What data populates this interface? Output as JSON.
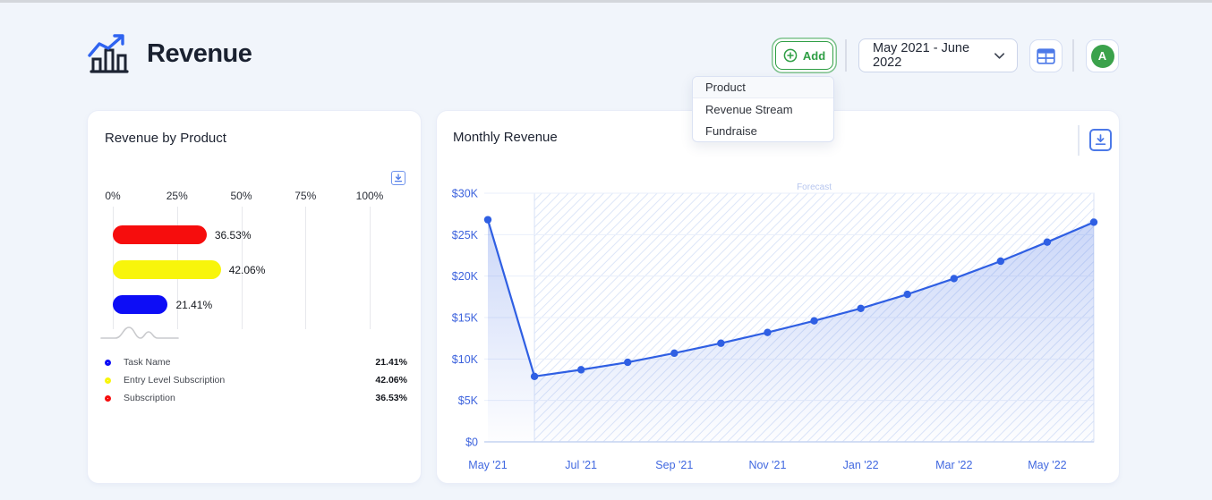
{
  "header": {
    "title": "Revenue",
    "add_button_label": "Add",
    "date_range_value": "May 2021 - June 2022",
    "avatar_initial": "A"
  },
  "add_menu": {
    "items": [
      {
        "label": "Product"
      },
      {
        "label": "Revenue Stream"
      },
      {
        "label": "Fundraise"
      }
    ]
  },
  "cards": {
    "revenue_by_product_title": "Revenue by Product",
    "monthly_revenue_title": "Monthly Revenue"
  },
  "colors": {
    "accent_blue": "#2f5fe3",
    "accent_green": "#2e9e44",
    "axis_label_blue": "#4168e0",
    "hatch_blue": "#dde6f8"
  },
  "chart_data": [
    {
      "type": "bar",
      "title": "Revenue by Product",
      "orientation": "horizontal",
      "categories": [
        "Subscription",
        "Entry Level Subscription",
        "Task Name"
      ],
      "values": [
        36.53,
        42.06,
        21.41
      ],
      "value_labels": [
        "36.53%",
        "42.06%",
        "21.41%"
      ],
      "colors": [
        "#f60d0d",
        "#f8f50b",
        "#0d0df6"
      ],
      "xticks": [
        "0%",
        "25%",
        "50%",
        "75%",
        "100%"
      ],
      "xlim": [
        0,
        100
      ],
      "grid": true,
      "legend_position": "bottom",
      "legend": [
        {
          "name": "Task Name",
          "value_label": "21.41%",
          "color": "#0d0df6"
        },
        {
          "name": "Entry Level Subscription",
          "value_label": "42.06%",
          "color": "#f8f50b"
        },
        {
          "name": "Subscription",
          "value_label": "36.53%",
          "color": "#f60d0d"
        }
      ]
    },
    {
      "type": "line",
      "title": "Monthly Revenue",
      "x": [
        "May '21",
        "Jun '21",
        "Jul '21",
        "Aug '21",
        "Sep '21",
        "Oct '21",
        "Nov '21",
        "Dec '21",
        "Jan '22",
        "Feb '22",
        "Mar '22",
        "Apr '22",
        "May '22",
        "Jun '22"
      ],
      "values_k": [
        26.8,
        7.9,
        8.7,
        9.6,
        10.7,
        11.9,
        13.2,
        14.6,
        16.1,
        17.8,
        19.7,
        21.8,
        24.1,
        26.5
      ],
      "ylim": [
        0,
        30
      ],
      "ylabel_unit": "$K",
      "yticks": [
        {
          "label": "$30K",
          "value": 30
        },
        {
          "label": "$25K",
          "value": 25
        },
        {
          "label": "$20K",
          "value": 20
        },
        {
          "label": "$15K",
          "value": 15
        },
        {
          "label": "$10K",
          "value": 10
        },
        {
          "label": "$5K",
          "value": 5
        },
        {
          "label": "$0",
          "value": 0
        }
      ],
      "xtick_indices": [
        0,
        2,
        4,
        6,
        8,
        10,
        12
      ],
      "xtick_labels": [
        "May '21",
        "Jul '21",
        "Sep '21",
        "Nov '21",
        "Jan '22",
        "Mar '22",
        "May '22"
      ],
      "forecast": {
        "label": "Forecast",
        "start_index": 1
      },
      "line_color": "#2f5fe3",
      "grid": true,
      "legend_position": "none"
    }
  ]
}
